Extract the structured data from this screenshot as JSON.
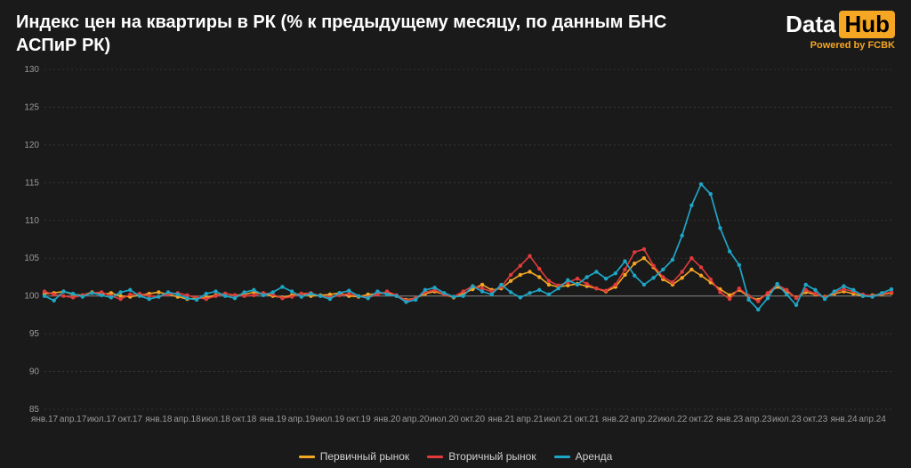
{
  "title": "Индекс цен на квартиры в РК (% к предыдущему месяцу, по данным БНС АСПиР РК)",
  "logo": {
    "left": "Data",
    "right": "Hub",
    "sub": "Powered by FCBK"
  },
  "chart": {
    "type": "line",
    "background_color": "#1a1a1a",
    "grid_color": "#3a3a3a",
    "grid_dashed": true,
    "axis_text_color": "#9a9a9a",
    "axis_fontsize": 10,
    "ref_line": {
      "y": 100,
      "color": "#7a7a7a"
    },
    "ylim": [
      85,
      130
    ],
    "ytick_step": 5,
    "x_labels": [
      "янв.17",
      "апр.17",
      "июл.17",
      "окт.17",
      "янв.18",
      "апр.18",
      "июл.18",
      "окт.18",
      "янв.19",
      "апр.19",
      "июл.19",
      "окт.19",
      "янв.20",
      "апр.20",
      "июл.20",
      "окт.20",
      "янв.21",
      "апр.21",
      "июл.21",
      "окт.21",
      "янв.22",
      "апр.22",
      "июл.22",
      "окт.22",
      "янв.23",
      "апр.23",
      "июл.23",
      "окт.23",
      "янв.24",
      "апр.24"
    ],
    "series": [
      {
        "name": "Первичный рынок",
        "color": "#f5a623",
        "line_width": 1.6,
        "marker": "circle",
        "marker_size": 2.2,
        "data": [
          100.3,
          100.4,
          100.6,
          100.2,
          100.1,
          100.5,
          100.2,
          100.4,
          100.0,
          99.9,
          100.1,
          100.3,
          100.5,
          100.2,
          99.9,
          99.6,
          99.7,
          99.8,
          100.1,
          100.3,
          100.1,
          100.2,
          100.5,
          100.3,
          100.0,
          99.8,
          100.1,
          100.3,
          100.0,
          100.1,
          100.2,
          100.4,
          100.0,
          99.9,
          100.2,
          100.3,
          100.4,
          100.0,
          99.5,
          99.7,
          100.3,
          100.6,
          100.2,
          99.8,
          100.3,
          100.9,
          101.5,
          100.8,
          101.0,
          102.0,
          102.8,
          103.2,
          102.5,
          101.5,
          101.2,
          101.4,
          101.6,
          101.3,
          101.0,
          100.6,
          101.2,
          102.8,
          104.3,
          105.0,
          103.8,
          102.2,
          101.5,
          102.4,
          103.5,
          102.7,
          101.8,
          100.9,
          100.1,
          100.8,
          99.9,
          99.5,
          100.3,
          101.2,
          100.6,
          99.8,
          100.5,
          100.2,
          99.9,
          100.3,
          100.6,
          100.3,
          100.0,
          100.1,
          100.2,
          100.4
        ]
      },
      {
        "name": "Вторичный рынок",
        "color": "#e23b3b",
        "line_width": 1.6,
        "marker": "circle",
        "marker_size": 2.2,
        "data": [
          100.6,
          100.2,
          100.0,
          99.8,
          100.1,
          100.4,
          100.5,
          100.0,
          99.6,
          100.2,
          100.3,
          100.0,
          99.9,
          100.2,
          100.4,
          100.1,
          99.8,
          99.6,
          100.0,
          100.3,
          100.1,
          100.0,
          100.1,
          100.4,
          100.2,
          99.7,
          99.9,
          100.3,
          100.4,
          100.0,
          99.8,
          100.1,
          100.3,
          100.0,
          99.8,
          100.2,
          100.6,
          100.1,
          99.4,
          99.7,
          100.5,
          100.8,
          100.2,
          99.9,
          100.6,
          101.3,
          101.0,
          100.6,
          101.2,
          102.8,
          104.0,
          105.3,
          103.6,
          102.0,
          101.4,
          101.8,
          102.3,
          101.6,
          101.0,
          100.7,
          101.5,
          103.5,
          105.8,
          106.2,
          104.0,
          102.5,
          101.8,
          103.2,
          105.0,
          103.8,
          102.2,
          100.5,
          99.6,
          101.0,
          100.0,
          99.3,
          100.4,
          101.5,
          100.8,
          99.7,
          100.8,
          100.3,
          99.8,
          100.5,
          100.9,
          100.6,
          100.2,
          100.0,
          100.3,
          100.5
        ]
      },
      {
        "name": "Аренда",
        "color": "#1ea6c6",
        "line_width": 1.7,
        "marker": "circle",
        "marker_size": 2.2,
        "data": [
          100.0,
          99.4,
          100.6,
          100.3,
          99.9,
          100.4,
          100.1,
          99.8,
          100.5,
          100.8,
          100.0,
          99.6,
          99.9,
          100.5,
          100.2,
          99.7,
          99.5,
          100.3,
          100.6,
          100.0,
          99.7,
          100.5,
          100.8,
          100.1,
          100.5,
          101.2,
          100.6,
          99.9,
          100.3,
          100.0,
          99.6,
          100.4,
          100.7,
          100.0,
          99.7,
          100.6,
          100.2,
          100.0,
          99.2,
          99.5,
          100.8,
          101.1,
          100.4,
          99.9,
          100.0,
          101.3,
          100.6,
          100.2,
          101.5,
          100.5,
          99.8,
          100.4,
          100.8,
          100.2,
          101.0,
          102.1,
          101.5,
          102.5,
          103.2,
          102.3,
          103.0,
          104.6,
          102.7,
          101.5,
          102.4,
          103.5,
          104.8,
          108.0,
          112.0,
          114.8,
          113.5,
          109.0,
          105.9,
          104.1,
          99.5,
          98.2,
          99.7,
          101.6,
          100.2,
          98.8,
          101.5,
          100.8,
          99.6,
          100.6,
          101.3,
          100.8,
          100.0,
          99.9,
          100.4,
          100.9
        ]
      }
    ],
    "legend": {
      "position": "bottom",
      "fontsize": 12,
      "text_color": "#d0d0d0"
    }
  }
}
